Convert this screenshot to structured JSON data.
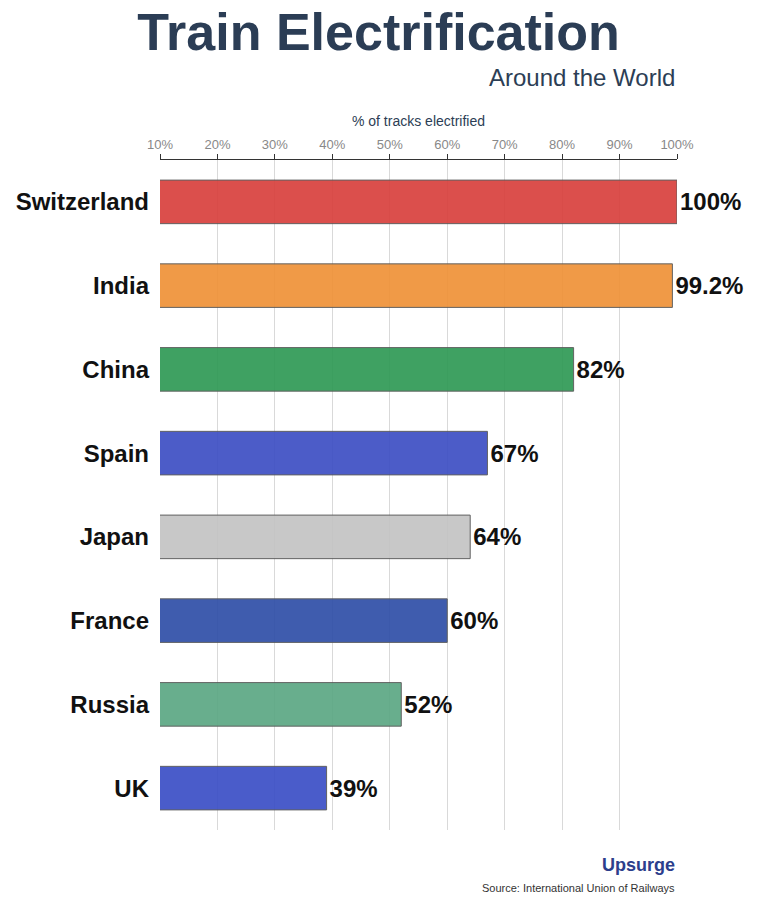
{
  "chart_data": {
    "type": "bar",
    "orientation": "horizontal",
    "title": "Train Electrification",
    "subtitle": "Around the World",
    "x_label": "% of tracks electrified",
    "categories": [
      "Switzerland",
      "India",
      "China",
      "Spain",
      "Japan",
      "France",
      "Russia",
      "UK"
    ],
    "values": [
      100,
      99.2,
      82,
      67,
      64,
      60,
      52,
      39
    ],
    "value_labels": [
      "100%",
      "99.2%",
      "82%",
      "67%",
      "64%",
      "60%",
      "52%",
      "39%"
    ],
    "colors": [
      "#d8413d",
      "#ef9238",
      "#2f9a55",
      "#3d4fc4",
      "#c4c4c4",
      "#2f4fa8",
      "#5ca884",
      "#3b4fc6"
    ],
    "xlim": [
      10,
      100
    ],
    "xticks": [
      {
        "value": 10,
        "label": "10%"
      },
      {
        "value": 20,
        "label": "20%"
      },
      {
        "value": 30,
        "label": "30%"
      },
      {
        "value": 40,
        "label": "40%"
      },
      {
        "value": 50,
        "label": "50%"
      },
      {
        "value": 60,
        "label": "60%"
      },
      {
        "value": 70,
        "label": "70%"
      },
      {
        "value": 80,
        "label": "80%"
      },
      {
        "value": 90,
        "label": "90%"
      },
      {
        "value": 100,
        "label": "100%"
      }
    ],
    "grid": true,
    "data_labels": true,
    "annotations": [
      "Upsurge",
      "Source: International Union of Railways"
    ]
  }
}
